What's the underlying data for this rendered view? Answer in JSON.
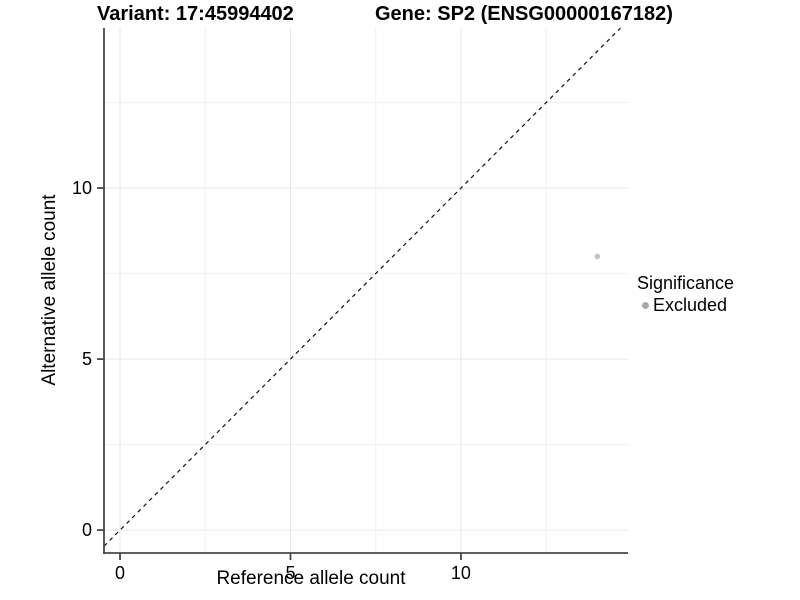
{
  "chart_data": {
    "type": "scatter",
    "titles": {
      "left": "Variant: 17:45994402",
      "right": "Gene: SP2 (ENSG00000167182)"
    },
    "xlabel": "Reference allele count",
    "ylabel": "Alternative allele count",
    "xlim": [
      -0.47,
      14.9
    ],
    "ylim": [
      -0.67,
      14.68
    ],
    "x_ticks": [
      0,
      5,
      10
    ],
    "y_ticks": [
      0,
      5,
      10
    ],
    "x_grid_minor": [
      2.5,
      7.5,
      12.5
    ],
    "y_grid_minor": [
      2.5,
      7.5,
      12.5
    ],
    "grid": true,
    "points": [
      {
        "x": 14,
        "y": 8,
        "significance": "Excluded"
      }
    ],
    "identity_line": {
      "slope": 1,
      "intercept": 0,
      "style": "dashed"
    },
    "legend": {
      "title": "Significance",
      "position": "right",
      "entries": [
        {
          "label": "Excluded",
          "marker": "circle",
          "color": "#a8a8a8"
        }
      ]
    },
    "colors": {
      "background": "#ffffff",
      "point": "#c4c4c4",
      "grid_major": "#e7e7e7",
      "grid_minor": "#f1f1f1",
      "axis": "#474747",
      "tick_text": "#000000",
      "identity_line": "#111111"
    }
  }
}
